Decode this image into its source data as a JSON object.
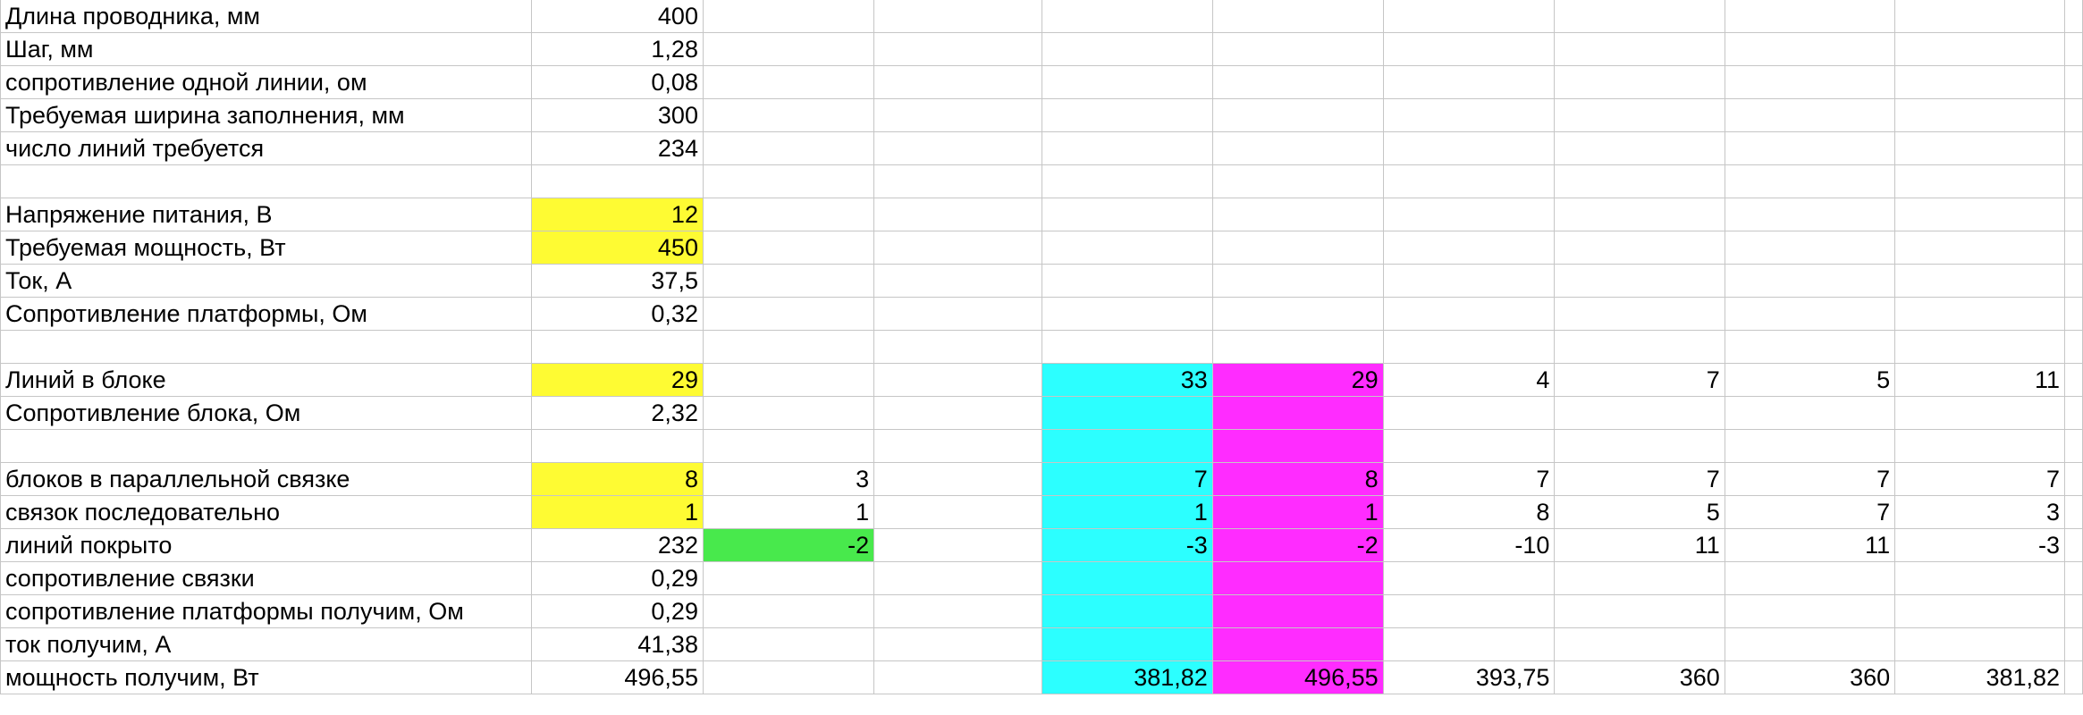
{
  "colors": {
    "yellow": "#fefb33",
    "green": "#48e94c",
    "cyan": "#2cffff",
    "magenta": "#ff2cff"
  },
  "sheet": {
    "rows": [
      [
        "Длина проводника, мм",
        "400",
        "",
        "",
        "",
        "",
        "",
        "",
        "",
        ""
      ],
      [
        "Шаг, мм",
        "1,28",
        "",
        "",
        "",
        "",
        "",
        "",
        "",
        ""
      ],
      [
        "сопротивление одной линии, ом",
        "0,08",
        "",
        "",
        "",
        "",
        "",
        "",
        "",
        ""
      ],
      [
        "Требуемая ширина заполнения, мм",
        "300",
        "",
        "",
        "",
        "",
        "",
        "",
        "",
        ""
      ],
      [
        "число линий требуется",
        "234",
        "",
        "",
        "",
        "",
        "",
        "",
        "",
        ""
      ],
      [
        "",
        "",
        "",
        "",
        "",
        "",
        "",
        "",
        "",
        ""
      ],
      [
        "Напряжение питания, В",
        "12",
        "",
        "",
        "",
        "",
        "",
        "",
        "",
        ""
      ],
      [
        "Требуемая мощность, Вт",
        "450",
        "",
        "",
        "",
        "",
        "",
        "",
        "",
        ""
      ],
      [
        "Ток, А",
        "37,5",
        "",
        "",
        "",
        "",
        "",
        "",
        "",
        ""
      ],
      [
        "Сопротивление платформы, Ом",
        "0,32",
        "",
        "",
        "",
        "",
        "",
        "",
        "",
        ""
      ],
      [
        "",
        "",
        "",
        "",
        "",
        "",
        "",
        "",
        "",
        ""
      ],
      [
        "Линий в блоке",
        "29",
        "",
        "",
        "33",
        "29",
        "4",
        "7",
        "5",
        "11"
      ],
      [
        "Сопротивление блока, Ом",
        "2,32",
        "",
        "",
        "",
        "",
        "",
        "",
        "",
        ""
      ],
      [
        "",
        "",
        "",
        "",
        "",
        "",
        "",
        "",
        "",
        ""
      ],
      [
        "блоков в параллельной связке",
        "8",
        "3",
        "",
        "7",
        "8",
        "7",
        "7",
        "7",
        "7"
      ],
      [
        "связок последовательно",
        "1",
        "1",
        "",
        "1",
        "1",
        "8",
        "5",
        "7",
        "3"
      ],
      [
        "линий покрыто",
        "232",
        "-2",
        "",
        "-3",
        "-2",
        "-10",
        "11",
        "11",
        "-3"
      ],
      [
        "сопротивление связки",
        "0,29",
        "",
        "",
        "",
        "",
        "",
        "",
        "",
        ""
      ],
      [
        "сопротивление платформы получим, Ом",
        "0,29",
        "",
        "",
        "",
        "",
        "",
        "",
        "",
        ""
      ],
      [
        "ток получим, А",
        "41,38",
        "",
        "",
        "",
        "",
        "",
        "",
        "",
        ""
      ],
      [
        "мощность получим, Вт",
        "496,55",
        "",
        "",
        "381,82",
        "496,55",
        "393,75",
        "360",
        "360",
        "381,82"
      ]
    ],
    "highlights": [
      {
        "row": 7,
        "col": 1,
        "color": "yellow"
      },
      {
        "row": 8,
        "col": 1,
        "color": "yellow"
      },
      {
        "row": 12,
        "col": 1,
        "color": "yellow"
      },
      {
        "row": 15,
        "col": 1,
        "color": "yellow"
      },
      {
        "row": 16,
        "col": 1,
        "color": "yellow"
      },
      {
        "row": 17,
        "col": 2,
        "color": "green"
      },
      {
        "rows": [
          12,
          21
        ],
        "col": 4,
        "color": "cyan"
      },
      {
        "rows": [
          12,
          21
        ],
        "col": 5,
        "color": "magenta"
      }
    ]
  }
}
